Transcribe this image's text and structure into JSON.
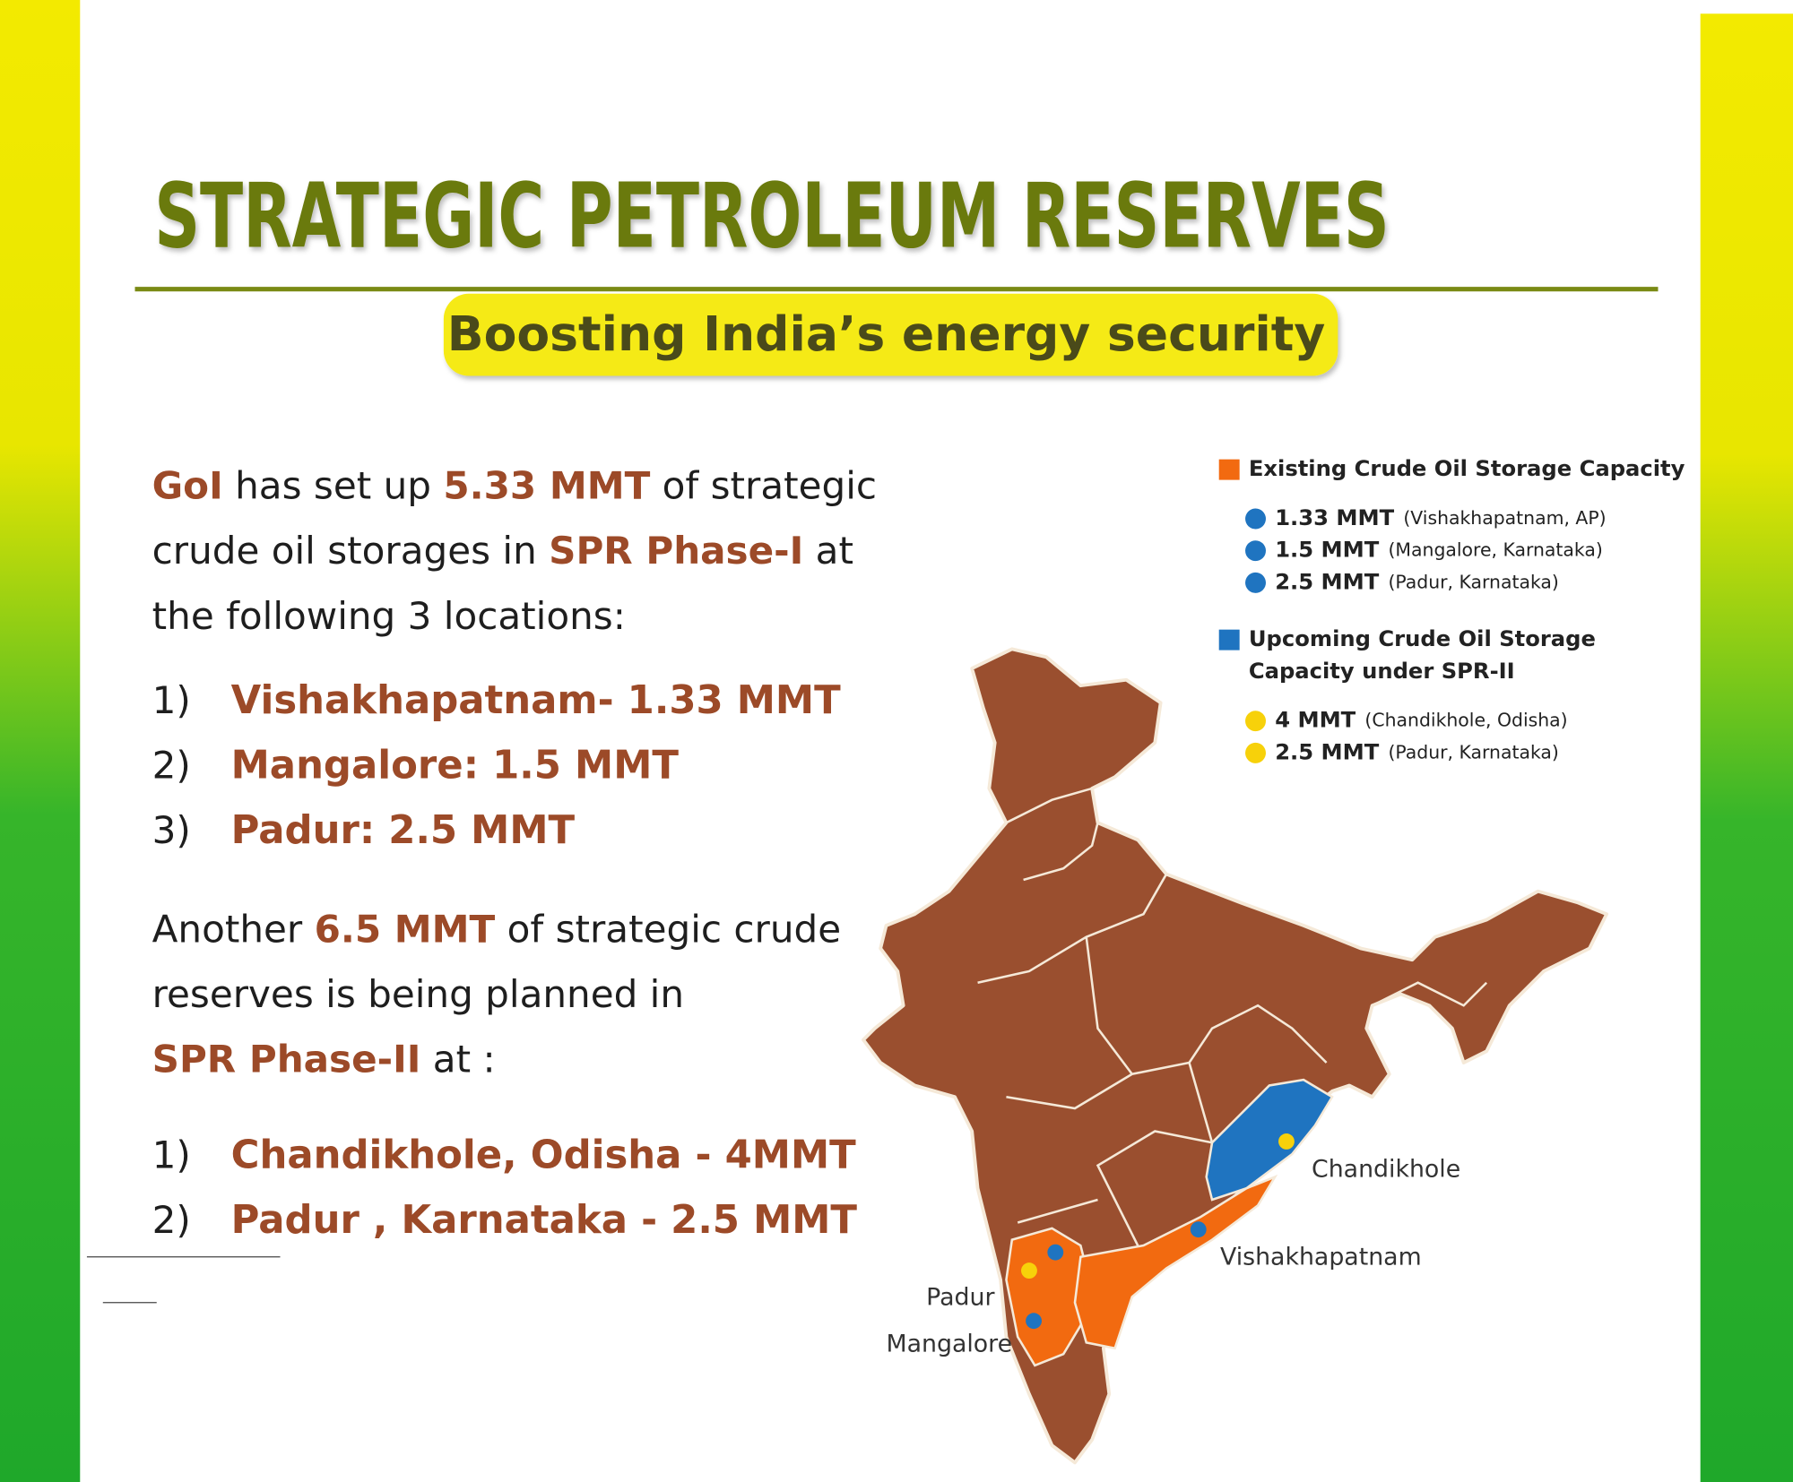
{
  "header": {
    "title": "STRATEGIC PETROLEUM RESERVES",
    "title_color": "#6b7a10",
    "subtitle": "Boosting India’s energy security",
    "subtitle_color": "#4a4a1a",
    "subtitle_background": "#f5ea14"
  },
  "phase1": {
    "intro": [
      [
        {
          "text": "GoI",
          "color": "#9c4a28"
        },
        {
          "text": " has set up ",
          "color": "#1e1e1e"
        },
        {
          "text": "5.33 MMT",
          "color": "#9c4a28"
        },
        {
          "text": " of strategic",
          "color": "#1e1e1e"
        }
      ],
      [
        {
          "text": "crude oil storages in ",
          "color": "#1e1e1e"
        },
        {
          "text": "SPR Phase-I",
          "color": "#9c4a28"
        },
        {
          "text": " at",
          "color": "#1e1e1e"
        }
      ],
      [
        {
          "text": "the following 3 locations:",
          "color": "#1e1e1e"
        }
      ]
    ],
    "items": [
      {
        "number": "1)",
        "text": "Vishakhapatnam- 1.33 MMT"
      },
      {
        "number": "2)",
        "text": "Mangalore: 1.5 MMT"
      },
      {
        "number": "3)",
        "text": "Padur: 2.5 MMT"
      }
    ]
  },
  "phase2": {
    "intro": [
      [
        {
          "text": "Another ",
          "color": "#1e1e1e"
        },
        {
          "text": "6.5 MMT",
          "color": "#9c4a28"
        },
        {
          "text": " of strategic crude",
          "color": "#1e1e1e"
        }
      ],
      [
        {
          "text": "reserves is being planned in",
          "color": "#1e1e1e"
        }
      ],
      [
        {
          "text": "SPR Phase-II",
          "color": "#9c4a28"
        },
        {
          "text": " at :",
          "color": "#1e1e1e"
        }
      ]
    ],
    "items": [
      {
        "number": "1)",
        "text": "Chandikhole, Odisha - 4MMT"
      },
      {
        "number": "2)",
        "text": "Padur , Karnataka - 2.5 MMT"
      }
    ]
  },
  "legend": {
    "existing": {
      "heading": [
        "Existing Crude Oil Storage Capacity"
      ],
      "color": "#f26a10",
      "items": [
        {
          "amount": "1.33 MMT",
          "place": "(Vishakhapatnam, AP)",
          "color": "#1f74c0"
        },
        {
          "amount": "1.5 MMT",
          "place": "(Mangalore, Karnataka)",
          "color": "#1f74c0"
        },
        {
          "amount": "2.5 MMT",
          "place": "(Padur, Karnataka)",
          "color": "#1f74c0"
        }
      ]
    },
    "upcoming": {
      "heading": [
        "Upcoming Crude Oil Storage",
        "Capacity under SPR-II"
      ],
      "color": "#1f74c0",
      "items": [
        {
          "amount": "4 MMT",
          "place": "(Chandikhole, Odisha)",
          "color": "#f7d10a"
        },
        {
          "amount": "2.5 MMT",
          "place": "(Padur, Karnataka)",
          "color": "#f7d10a"
        }
      ]
    }
  },
  "map": {
    "labels": [
      "Chandikhole",
      "Vishakhapatnam",
      "Padur",
      "Mangalore"
    ]
  }
}
